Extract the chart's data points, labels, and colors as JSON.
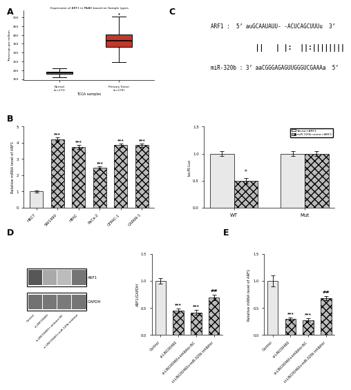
{
  "boxplot_title": "Expression of ARF1 in PAAD based on Sample types",
  "boxplot_xlabel": "TCGA samples",
  "boxplot_ylabel": "Transcript per million",
  "box_normal_label": "Normal\n(n=171)",
  "box_tumor_label": "Primary Tumor\n(n=179)",
  "box_normal_color": "#4472C4",
  "box_tumor_color": "#C0392B",
  "bar_B_categories": [
    "H6C7",
    "SW1990",
    "HPAC",
    "PaCa-2",
    "CFPAC-1",
    "CAPAN-1"
  ],
  "bar_B_values": [
    1.0,
    4.2,
    3.75,
    2.45,
    3.85,
    3.85
  ],
  "bar_B_errors": [
    0.05,
    0.12,
    0.12,
    0.1,
    0.1,
    0.1
  ],
  "bar_B_ylabel": "Relative mRNA level of ARF1",
  "bar_B_ylim": [
    0,
    5
  ],
  "binding_arf1_seq": "ARF1 :  5’ auGCAAUAUU- -ACUCAGCUUUu  3’",
  "binding_match": "           ||   | |:  ||:||||||||",
  "binding_mir_seq": "miR-320b : 3’ aaCGGGAGAGUUGGGUCGAAAa  5’",
  "bar_C_categories": [
    "WT",
    "Mut"
  ],
  "bar_C_values_v": [
    1.0,
    1.0
  ],
  "bar_C_values_m": [
    0.5,
    1.0
  ],
  "bar_C_errors_v": [
    0.05,
    0.05
  ],
  "bar_C_errors_m": [
    0.05,
    0.05
  ],
  "bar_C_ylabel": "luc/R-Luc",
  "bar_C_ylim": [
    0.0,
    1.5
  ],
  "bar_C_yticks": [
    0.0,
    0.5,
    1.0,
    1.5
  ],
  "bar_C_legend": [
    "Vector+ARF1",
    "miR-320b mimic+ARF1"
  ],
  "bar_D_categories": [
    "Control",
    "si-LINC00460",
    "si-LINC00460+inhibitor-NC",
    "si-LINC00460+miR-320b inhibitor"
  ],
  "bar_D_values": [
    1.0,
    0.45,
    0.42,
    0.7
  ],
  "bar_D_errors": [
    0.05,
    0.04,
    0.04,
    0.05
  ],
  "bar_D_ylabel": "ARF1/GAPDH",
  "bar_D_ylim": [
    0.0,
    1.5
  ],
  "bar_D_yticks": [
    0.0,
    0.5,
    1.0,
    1.5
  ],
  "bar_E_categories": [
    "Control",
    "si-LINC00460",
    "si-LINC00460+inhibitor-NC",
    "si-LINC00460+miR-320b inhibitor"
  ],
  "bar_E_values": [
    1.0,
    0.3,
    0.28,
    0.68
  ],
  "bar_E_errors": [
    0.1,
    0.03,
    0.03,
    0.04
  ],
  "bar_E_ylabel": "Relative mRNA level of ARF1",
  "bar_E_ylim": [
    0.0,
    1.5
  ],
  "bar_E_yticks": [
    0.0,
    0.5,
    1.0,
    1.5
  ],
  "sig_B": [
    "***",
    "***",
    "***",
    "***",
    "***"
  ],
  "sig_D": [
    "",
    "***",
    "***",
    "##"
  ],
  "sig_E": [
    "",
    "***",
    "***",
    "##"
  ],
  "color_light_gray": "#D8D8D8",
  "color_hatch_gray": "#BBBBBB",
  "figure_bg": "#FFFFFF"
}
